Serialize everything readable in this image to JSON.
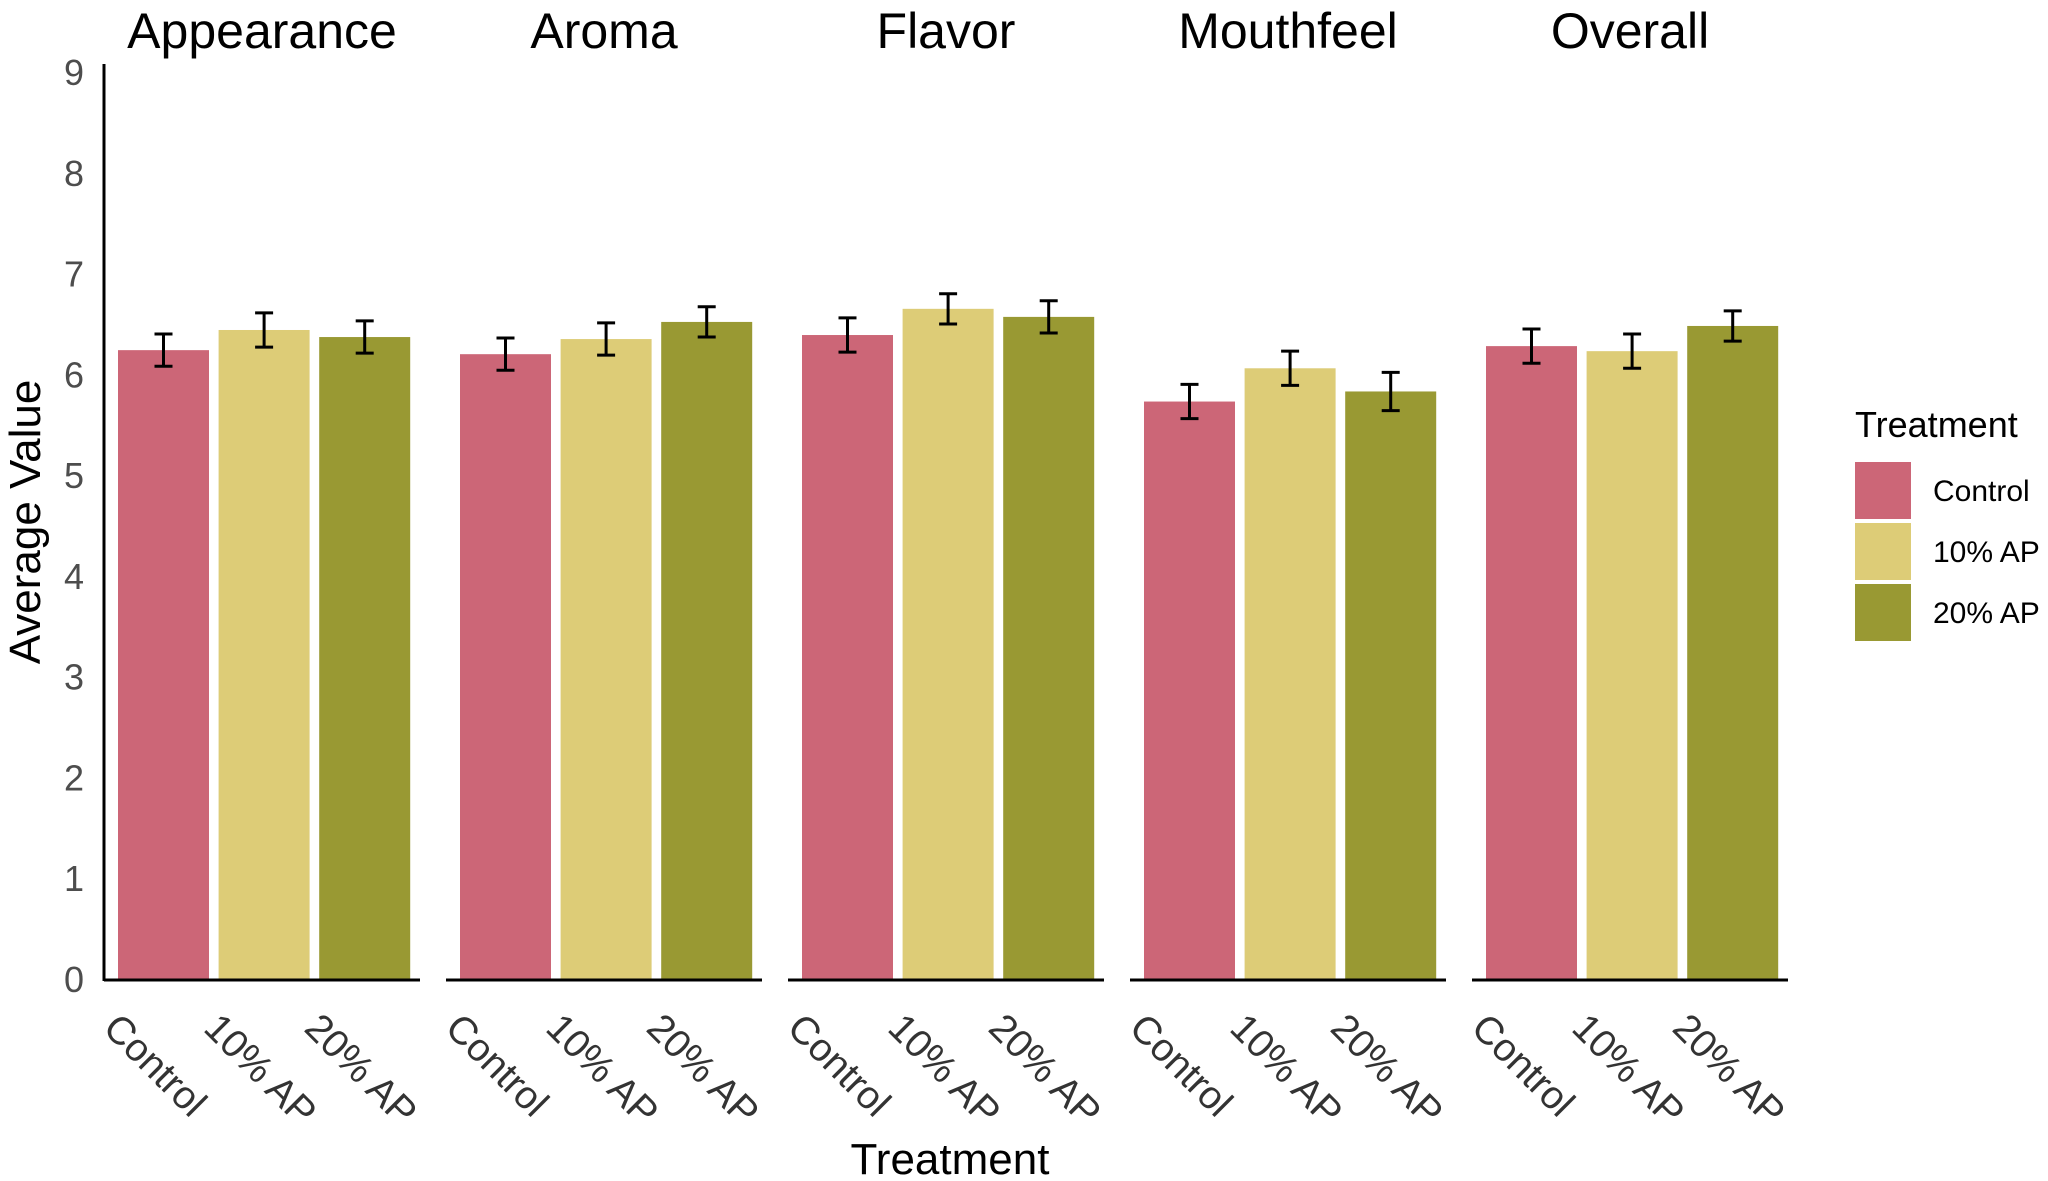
{
  "chart_data": {
    "type": "bar",
    "facets": [
      "Appearance",
      "Aroma",
      "Flavor",
      "Mouthfeel",
      "Overall"
    ],
    "categories": [
      "Control",
      "10% AP",
      "20% AP"
    ],
    "xlabel": "Treatment",
    "ylabel": "Average Value",
    "ylim": [
      0,
      9
    ],
    "yticks": [
      0,
      1,
      2,
      3,
      4,
      5,
      6,
      7,
      8,
      9
    ],
    "grid": false,
    "legend": {
      "title": "Treatment",
      "placement": "right",
      "entries": [
        "Control",
        "10% AP",
        "20% AP"
      ]
    },
    "colors": {
      "Control": "#cc6677",
      "10% AP": "#ddcc77",
      "20% AP": "#999933"
    },
    "values": {
      "Appearance": [
        6.24,
        6.44,
        6.37
      ],
      "Aroma": [
        6.2,
        6.35,
        6.52
      ],
      "Flavor": [
        6.39,
        6.65,
        6.57
      ],
      "Mouthfeel": [
        5.73,
        6.06,
        5.83
      ],
      "Overall": [
        6.28,
        6.23,
        6.48
      ]
    },
    "error": {
      "Appearance": [
        0.16,
        0.17,
        0.16
      ],
      "Aroma": [
        0.16,
        0.16,
        0.15
      ],
      "Flavor": [
        0.17,
        0.15,
        0.16
      ],
      "Mouthfeel": [
        0.17,
        0.17,
        0.19
      ],
      "Overall": [
        0.17,
        0.17,
        0.15
      ]
    }
  }
}
